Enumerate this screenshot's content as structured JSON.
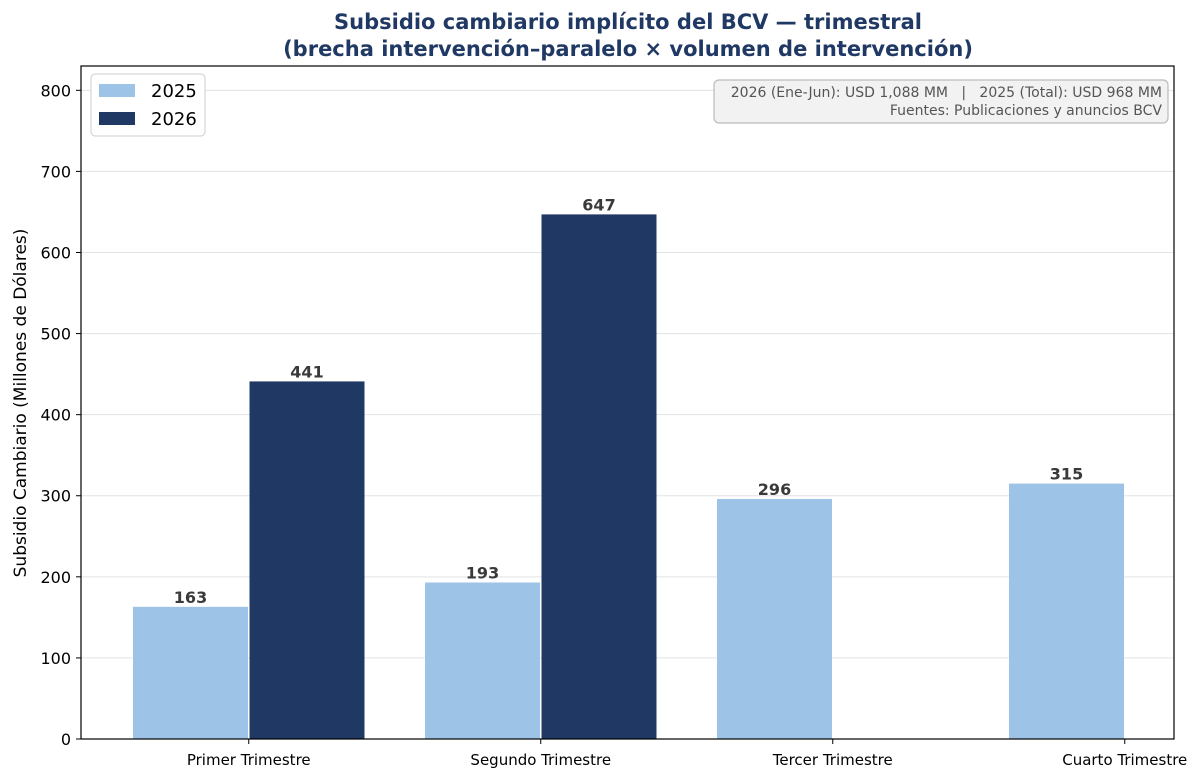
{
  "chart_data": {
    "type": "bar",
    "title": "Subsidio cambiario implícito del BCV — trimestral",
    "subtitle": "(brecha intervención–paralelo × volumen de intervención)",
    "xlabel": "",
    "ylabel": "Subsidio Cambiario (Millones de Dólares)",
    "ylim": [
      0,
      830
    ],
    "yticks": [
      0,
      100,
      200,
      300,
      400,
      500,
      600,
      700,
      800
    ],
    "categories": [
      "Primer Trimestre",
      "Segundo Trimestre",
      "Tercer Trimestre",
      "Cuarto Trimestre"
    ],
    "series": [
      {
        "name": "2025",
        "color": "#9dc3e6",
        "values": [
          163,
          193,
          296,
          315
        ]
      },
      {
        "name": "2026",
        "color": "#203864",
        "values": [
          441,
          647,
          null,
          null
        ]
      }
    ],
    "grid": true,
    "legend_position": "top-left",
    "annotation": {
      "line1": "2026 (Ene-Jun): USD 1,088 MM   |   2025 (Total): USD 968 MM",
      "line2": "Fuentes: Publicaciones y anuncios BCV"
    }
  }
}
